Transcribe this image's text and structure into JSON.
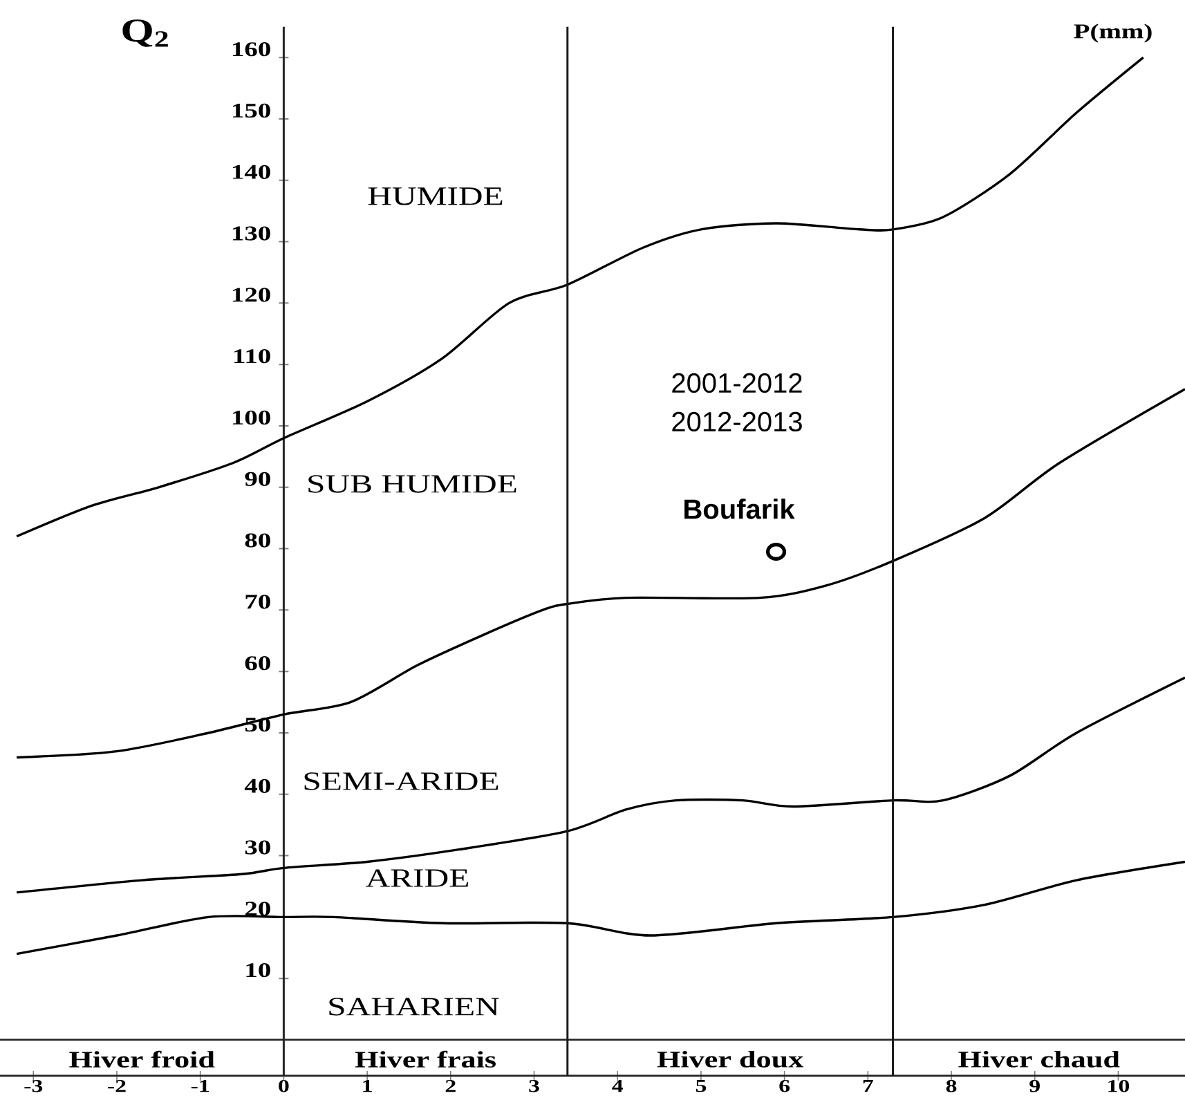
{
  "chart_data": {
    "type": "line",
    "ylabel": "Q$_{2}$",
    "xlim": [
      -3.4,
      10.8
    ],
    "ylim": [
      0,
      165
    ],
    "xticks": [
      -3,
      -2,
      -1,
      0,
      1,
      2,
      3,
      4,
      5,
      6,
      7,
      8,
      9,
      10
    ],
    "yticks": [
      10,
      20,
      30,
      40,
      50,
      60,
      70,
      80,
      90,
      100,
      110,
      120,
      130,
      140,
      150,
      160
    ],
    "series": [
      {
        "color": "#000000",
        "x": [
          -3.2,
          -2.3,
          -1.5,
          -0.6,
          0,
          1,
          1.9,
          2.7,
          3.4,
          4.3,
          5,
          5.9,
          6.9,
          7.3,
          7.9,
          8.7,
          9.5,
          10.3
        ],
        "values": [
          82,
          87,
          90,
          94,
          98,
          104,
          111,
          120,
          123,
          129,
          132,
          133,
          132,
          132,
          134,
          141,
          151,
          160
        ]
      },
      {
        "color": "#000000",
        "x": [
          -3.2,
          -2,
          -0.9,
          0,
          0.8,
          1.6,
          2.4,
          3.1,
          3.4,
          4.1,
          5.7,
          6.5,
          7.3,
          8.4,
          9.3,
          10.8
        ],
        "values": [
          46,
          47,
          50,
          53,
          55,
          61,
          66,
          70,
          71,
          72,
          72,
          74,
          78,
          85,
          94,
          106
        ]
      },
      {
        "color": "#000000",
        "x": [
          -3.2,
          -1.7,
          -0.5,
          0,
          1,
          2.1,
          3.4,
          4.1,
          4.7,
          5.5,
          6.1,
          7.3,
          7.9,
          8.7,
          9.5,
          10.8
        ],
        "values": [
          24,
          26,
          27,
          28,
          29,
          31,
          34,
          37.5,
          39,
          39,
          38,
          39,
          39,
          43,
          50,
          59
        ]
      },
      {
        "color": "#000000",
        "x": [
          -3.2,
          -2,
          -0.9,
          0,
          0.6,
          1.9,
          3.4,
          4.4,
          5.9,
          7.3,
          8.4,
          9.5,
          10.8
        ],
        "values": [
          14,
          17,
          20,
          20,
          20,
          19,
          19,
          17,
          19,
          20,
          22,
          26,
          29
        ]
      },
      {
        "name": "Boufarik",
        "type": "scatter",
        "marker": "circle",
        "color": "#000000",
        "x": [
          5.9
        ],
        "values": [
          79.5
        ]
      }
    ],
    "ref_lines": [
      {
        "axis": "x",
        "value": 3.4
      },
      {
        "axis": "x",
        "value": 7.3
      }
    ],
    "annotations": [
      "HUMIDE",
      "SUB HUMIDE",
      "SEMI-ARIDE",
      "ARIDE",
      "SAHARIEN",
      "2001-2012",
      "2012-2013",
      "Hiver froid",
      "Hiver frais",
      "Hiver doux",
      "Hiver chaud",
      "P(mm)"
    ]
  }
}
